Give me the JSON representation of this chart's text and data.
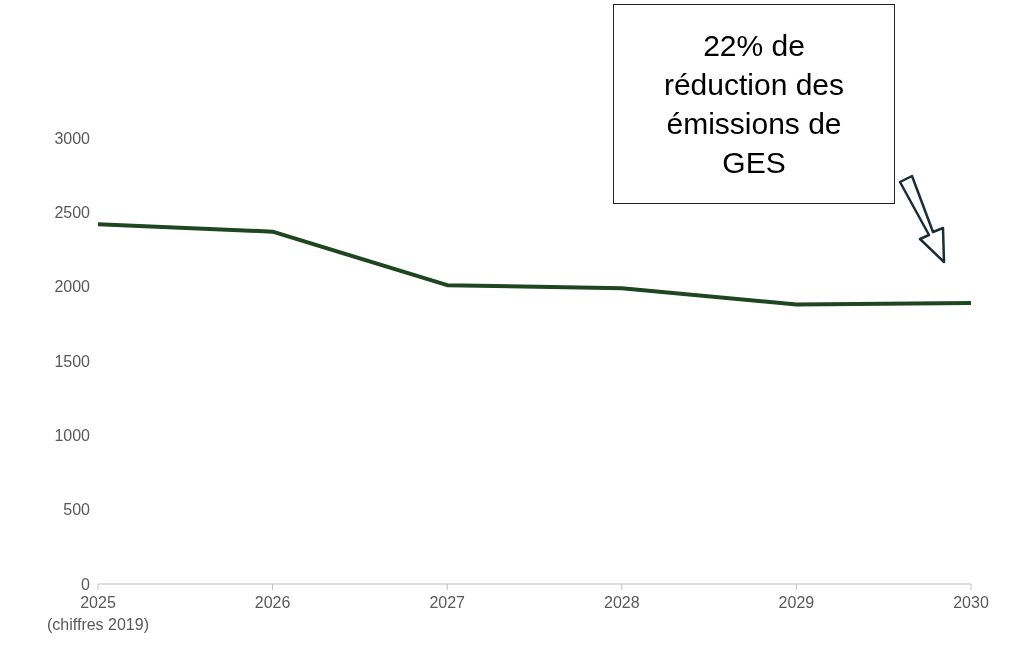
{
  "chart_data": {
    "type": "line",
    "categories": [
      "2025\n(chiffres 2019)",
      "2026",
      "2027",
      "2028",
      "2029",
      "2030"
    ],
    "series": [
      {
        "color": "#1e4620",
        "values": [
          2420,
          2370,
          2010,
          1990,
          1880,
          1890
        ]
      }
    ],
    "ylim": [
      0,
      3000
    ],
    "yticks": [
      0,
      500,
      1000,
      1500,
      2000,
      2500,
      3000
    ],
    "grid": false,
    "legend": false,
    "marker": "none",
    "line_style": "solid",
    "annotations": [
      "22% de réduction des émissions de GES"
    ]
  }
}
